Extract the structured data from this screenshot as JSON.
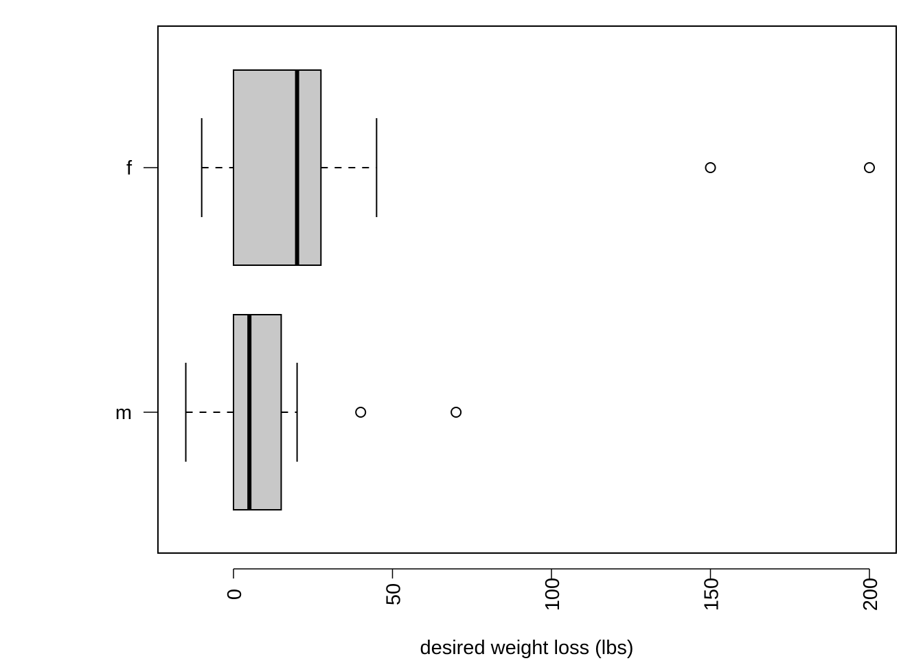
{
  "chart_data": {
    "type": "boxplot",
    "orientation": "horizontal",
    "xlabel": "desired weight loss (lbs)",
    "ylabel": "",
    "title": "",
    "xlim": [
      -24,
      209
    ],
    "x_ticks": [
      0,
      50,
      100,
      150,
      200
    ],
    "categories": [
      "m",
      "f"
    ],
    "box_fill": "#c8c8c8",
    "series": [
      {
        "name": "m",
        "whisker_low": -15,
        "q1": 0,
        "median": 5,
        "q3": 15,
        "whisker_high": 20,
        "outliers": [
          40,
          70
        ]
      },
      {
        "name": "f",
        "whisker_low": -10,
        "q1": 0,
        "median": 20,
        "q3": 27.5,
        "whisker_high": 45,
        "outliers": [
          150,
          200
        ]
      }
    ]
  }
}
